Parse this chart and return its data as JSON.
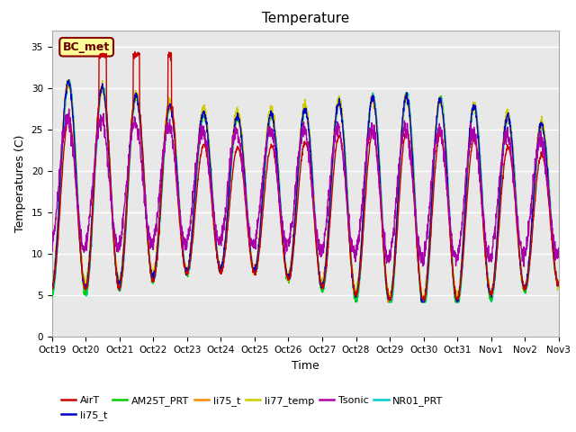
{
  "title": "Temperature",
  "ylabel": "Temperatures (C)",
  "xlabel": "Time",
  "ylim": [
    0,
    37
  ],
  "yticks": [
    0,
    5,
    10,
    15,
    20,
    25,
    30,
    35
  ],
  "fig_bg": "#ffffff",
  "plot_bg": "#e8e8e8",
  "n_days": 15,
  "series": [
    {
      "label": "AirT",
      "color": "#cc0000",
      "lw": 1.0,
      "zorder": 5
    },
    {
      "label": "li75_t",
      "color": "#0000cc",
      "lw": 1.0,
      "zorder": 4
    },
    {
      "label": "AM25T_PRT",
      "color": "#00cc00",
      "lw": 1.0,
      "zorder": 3
    },
    {
      "label": "li75_t",
      "color": "#ff8800",
      "lw": 1.0,
      "zorder": 3
    },
    {
      "label": "li77_temp",
      "color": "#cccc00",
      "lw": 1.0,
      "zorder": 3
    },
    {
      "label": "Tsonic",
      "color": "#aa00aa",
      "lw": 1.0,
      "zorder": 6
    },
    {
      "label": "NR01_PRT",
      "color": "#00cccc",
      "lw": 1.0,
      "zorder": 2
    }
  ],
  "bc_met_label": "BC_met",
  "bc_met_box_color": "#ffff99",
  "bc_met_text_color": "#660000",
  "xtick_labels": [
    "Oct19",
    "Oct20",
    "Oct21",
    "Oct22",
    "Oct23",
    "Oct24",
    "Oct25",
    "Oct26",
    "Oct27",
    "Oct28",
    "Oct29",
    "Oct30",
    "Oct31",
    "Nov1",
    "Nov2",
    "Nov3"
  ],
  "grid_color": "#ffffff",
  "grid_lw": 1.0,
  "title_fontsize": 11,
  "label_fontsize": 9,
  "tick_fontsize": 7.5
}
